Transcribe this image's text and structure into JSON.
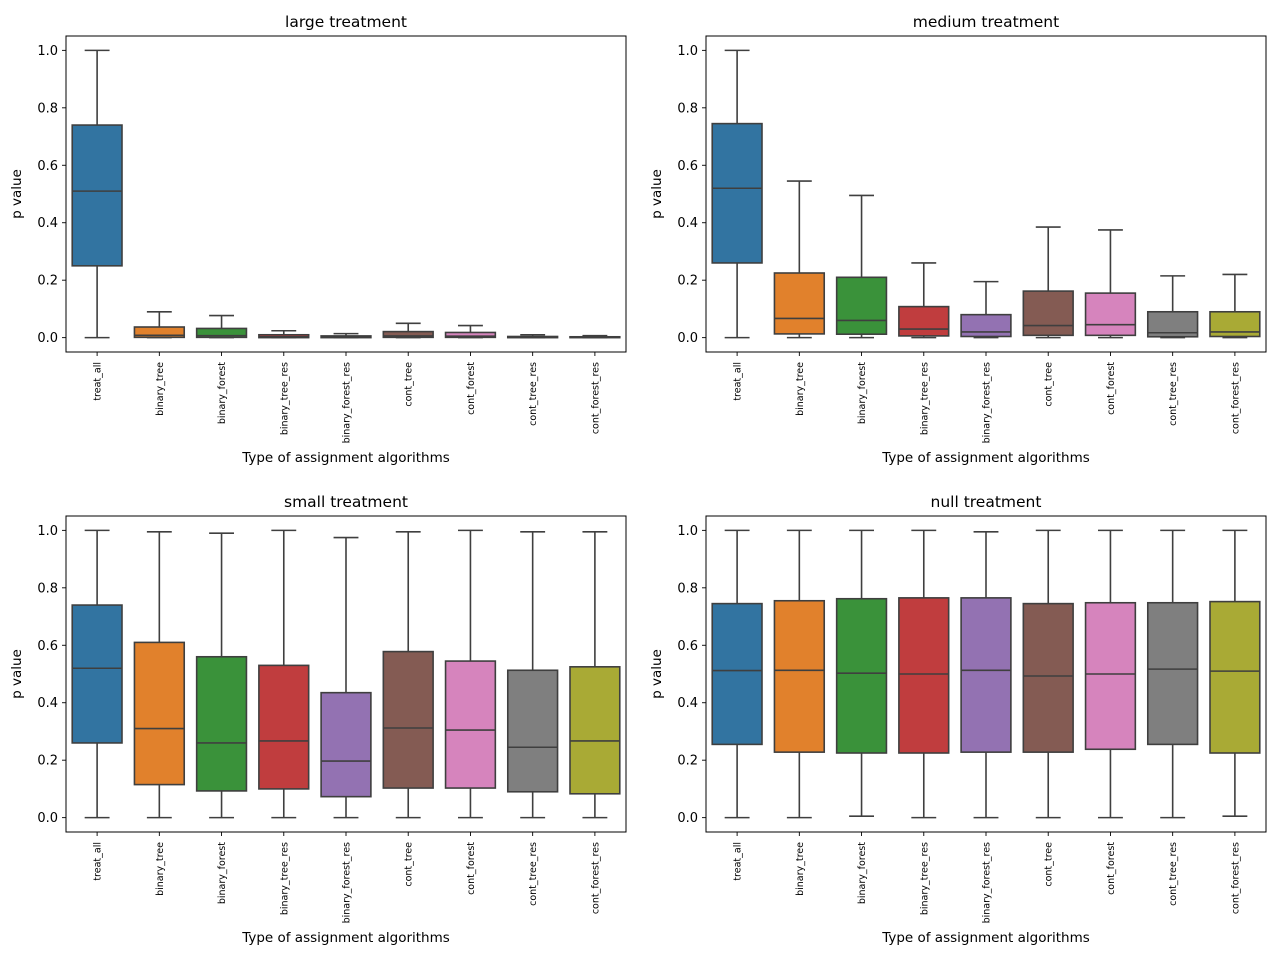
{
  "chart_data": [
    {
      "type": "box",
      "title": "large treatment",
      "xlabel": "Type of assignment algorithms",
      "ylabel": "p value",
      "ylim": [
        -0.05,
        1.05
      ],
      "yticks": [
        "0.0",
        "0.2",
        "0.4",
        "0.6",
        "0.8",
        "1.0"
      ],
      "categories": [
        "treat_all",
        "binary_tree",
        "binary_forest",
        "binary_tree_res",
        "binary_forest_res",
        "cont_tree",
        "cont_forest",
        "cont_tree_res",
        "cont_forest_res"
      ],
      "boxes": [
        {
          "min": 0.0,
          "q1": 0.25,
          "median": 0.51,
          "q3": 0.74,
          "max": 1.0
        },
        {
          "min": 0.0,
          "q1": 0.001,
          "median": 0.008,
          "q3": 0.037,
          "max": 0.09
        },
        {
          "min": 0.0,
          "q1": 0.001,
          "median": 0.007,
          "q3": 0.032,
          "max": 0.077
        },
        {
          "min": 0.0,
          "q1": 0.0,
          "median": 0.003,
          "q3": 0.01,
          "max": 0.024
        },
        {
          "min": 0.0,
          "q1": 0.0,
          "median": 0.002,
          "q3": 0.006,
          "max": 0.014
        },
        {
          "min": 0.0,
          "q1": 0.001,
          "median": 0.006,
          "q3": 0.021,
          "max": 0.05
        },
        {
          "min": 0.0,
          "q1": 0.001,
          "median": 0.005,
          "q3": 0.018,
          "max": 0.042
        },
        {
          "min": 0.0,
          "q1": 0.0,
          "median": 0.001,
          "q3": 0.004,
          "max": 0.01
        },
        {
          "min": 0.0,
          "q1": 0.0,
          "median": 0.001,
          "q3": 0.003,
          "max": 0.007
        }
      ]
    },
    {
      "type": "box",
      "title": "medium treatment",
      "xlabel": "Type of assignment algorithms",
      "ylabel": "p value",
      "ylim": [
        -0.05,
        1.05
      ],
      "yticks": [
        "0.0",
        "0.2",
        "0.4",
        "0.6",
        "0.8",
        "1.0"
      ],
      "categories": [
        "treat_all",
        "binary_tree",
        "binary_forest",
        "binary_tree_res",
        "binary_forest_res",
        "cont_tree",
        "cont_forest",
        "cont_tree_res",
        "cont_forest_res"
      ],
      "boxes": [
        {
          "min": 0.0,
          "q1": 0.26,
          "median": 0.52,
          "q3": 0.745,
          "max": 1.0
        },
        {
          "min": 0.0,
          "q1": 0.013,
          "median": 0.067,
          "q3": 0.225,
          "max": 0.545
        },
        {
          "min": 0.0,
          "q1": 0.012,
          "median": 0.06,
          "q3": 0.21,
          "max": 0.495
        },
        {
          "min": 0.0,
          "q1": 0.006,
          "median": 0.03,
          "q3": 0.108,
          "max": 0.26
        },
        {
          "min": 0.0,
          "q1": 0.004,
          "median": 0.02,
          "q3": 0.08,
          "max": 0.195
        },
        {
          "min": 0.0,
          "q1": 0.008,
          "median": 0.042,
          "q3": 0.162,
          "max": 0.385
        },
        {
          "min": 0.0,
          "q1": 0.008,
          "median": 0.045,
          "q3": 0.155,
          "max": 0.375
        },
        {
          "min": 0.0,
          "q1": 0.003,
          "median": 0.017,
          "q3": 0.09,
          "max": 0.215
        },
        {
          "min": 0.0,
          "q1": 0.004,
          "median": 0.02,
          "q3": 0.09,
          "max": 0.22
        }
      ]
    },
    {
      "type": "box",
      "title": "small treatment",
      "xlabel": "Type of assignment algorithms",
      "ylabel": "p value",
      "ylim": [
        -0.05,
        1.05
      ],
      "yticks": [
        "0.0",
        "0.2",
        "0.4",
        "0.6",
        "0.8",
        "1.0"
      ],
      "categories": [
        "treat_all",
        "binary_tree",
        "binary_forest",
        "binary_tree_res",
        "binary_forest_res",
        "cont_tree",
        "cont_forest",
        "cont_tree_res",
        "cont_forest_res"
      ],
      "boxes": [
        {
          "min": 0.0,
          "q1": 0.26,
          "median": 0.52,
          "q3": 0.74,
          "max": 1.0
        },
        {
          "min": 0.0,
          "q1": 0.115,
          "median": 0.31,
          "q3": 0.61,
          "max": 0.995
        },
        {
          "min": 0.0,
          "q1": 0.093,
          "median": 0.26,
          "q3": 0.56,
          "max": 0.99
        },
        {
          "min": 0.0,
          "q1": 0.1,
          "median": 0.267,
          "q3": 0.53,
          "max": 1.0
        },
        {
          "min": 0.0,
          "q1": 0.073,
          "median": 0.197,
          "q3": 0.435,
          "max": 0.975
        },
        {
          "min": 0.0,
          "q1": 0.103,
          "median": 0.312,
          "q3": 0.578,
          "max": 0.995
        },
        {
          "min": 0.0,
          "q1": 0.103,
          "median": 0.305,
          "q3": 0.545,
          "max": 1.0
        },
        {
          "min": 0.0,
          "q1": 0.09,
          "median": 0.245,
          "q3": 0.513,
          "max": 0.995
        },
        {
          "min": 0.0,
          "q1": 0.083,
          "median": 0.267,
          "q3": 0.525,
          "max": 0.995
        }
      ]
    },
    {
      "type": "box",
      "title": "null treatment",
      "xlabel": "Type of assignment algorithms",
      "ylabel": "p value",
      "ylim": [
        -0.05,
        1.05
      ],
      "yticks": [
        "0.0",
        "0.2",
        "0.4",
        "0.6",
        "0.8",
        "1.0"
      ],
      "categories": [
        "treat_all",
        "binary_tree",
        "binary_forest",
        "binary_tree_res",
        "binary_forest_res",
        "cont_tree",
        "cont_forest",
        "cont_tree_res",
        "cont_forest_res"
      ],
      "boxes": [
        {
          "min": 0.0,
          "q1": 0.255,
          "median": 0.512,
          "q3": 0.745,
          "max": 1.0
        },
        {
          "min": 0.0,
          "q1": 0.228,
          "median": 0.513,
          "q3": 0.755,
          "max": 1.0
        },
        {
          "min": 0.005,
          "q1": 0.225,
          "median": 0.503,
          "q3": 0.762,
          "max": 1.0
        },
        {
          "min": 0.0,
          "q1": 0.225,
          "median": 0.5,
          "q3": 0.765,
          "max": 1.0
        },
        {
          "min": 0.0,
          "q1": 0.228,
          "median": 0.513,
          "q3": 0.765,
          "max": 0.995
        },
        {
          "min": 0.0,
          "q1": 0.228,
          "median": 0.493,
          "q3": 0.745,
          "max": 1.0
        },
        {
          "min": 0.0,
          "q1": 0.238,
          "median": 0.5,
          "q3": 0.748,
          "max": 1.0
        },
        {
          "min": 0.0,
          "q1": 0.255,
          "median": 0.517,
          "q3": 0.748,
          "max": 1.0
        },
        {
          "min": 0.005,
          "q1": 0.225,
          "median": 0.51,
          "q3": 0.752,
          "max": 1.0
        }
      ]
    }
  ],
  "colors": [
    "#3274a1",
    "#e1812c",
    "#3a923a",
    "#c03d3e",
    "#9372b2",
    "#845b53",
    "#d684bd",
    "#7f7f7f",
    "#a9aa35"
  ],
  "line_color": "#3f3f3f"
}
